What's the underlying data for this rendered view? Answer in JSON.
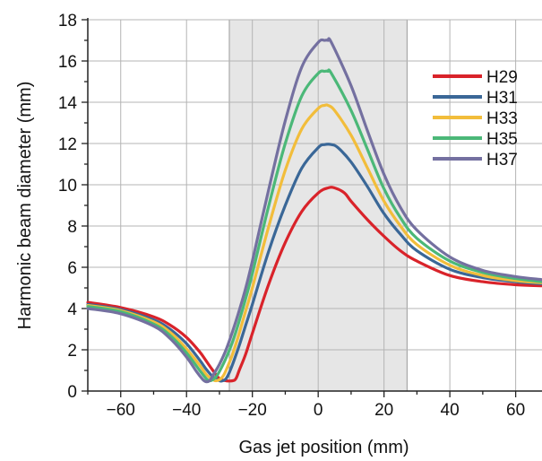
{
  "chart_data": {
    "type": "line",
    "xlabel": "Gas jet position (mm)",
    "ylabel": "Harmonic beam diameter (mm)",
    "xlim": [
      -70,
      68
    ],
    "ylim": [
      0,
      18
    ],
    "xticks": [
      -60,
      -40,
      -20,
      0,
      20,
      40,
      60
    ],
    "yticks": [
      0,
      2,
      4,
      6,
      8,
      10,
      12,
      14,
      16,
      18
    ],
    "grid": true,
    "legend_position": "top-right",
    "shaded_region": {
      "x_range": [
        -27,
        27
      ],
      "color": "#e6e6e6"
    },
    "series": [
      {
        "name": "H29",
        "color": "#d9232a",
        "x": [
          -70,
          -60,
          -50,
          -45,
          -40,
          -36,
          -34,
          -32,
          -30,
          -28,
          -26,
          -25,
          -24,
          -22,
          -20,
          -15,
          -10,
          -5,
          0,
          3,
          5,
          8,
          10,
          15,
          20,
          25,
          30,
          40,
          50,
          60,
          68
        ],
        "y": [
          4.3,
          4.05,
          3.6,
          3.2,
          2.6,
          1.9,
          1.45,
          1.0,
          0.6,
          0.5,
          0.5,
          0.6,
          1.0,
          1.8,
          2.8,
          5.2,
          7.2,
          8.7,
          9.6,
          9.85,
          9.85,
          9.6,
          9.2,
          8.3,
          7.5,
          6.8,
          6.3,
          5.6,
          5.3,
          5.15,
          5.1
        ]
      },
      {
        "name": "H31",
        "color": "#3a6797",
        "x": [
          -70,
          -60,
          -50,
          -45,
          -40,
          -36,
          -34,
          -32,
          -30,
          -29,
          -28,
          -27,
          -26,
          -24,
          -22,
          -20,
          -15,
          -10,
          -5,
          0,
          2,
          4,
          6,
          10,
          15,
          20,
          25,
          30,
          40,
          50,
          60,
          68
        ],
        "y": [
          4.2,
          3.95,
          3.45,
          3.0,
          2.3,
          1.5,
          1.05,
          0.7,
          0.5,
          0.5,
          0.6,
          0.9,
          1.3,
          2.2,
          3.2,
          4.2,
          6.8,
          9.0,
          10.8,
          11.8,
          11.95,
          11.95,
          11.8,
          11.1,
          9.9,
          8.6,
          7.6,
          6.8,
          5.9,
          5.5,
          5.3,
          5.2
        ]
      },
      {
        "name": "H33",
        "color": "#f2bd3b",
        "x": [
          -70,
          -60,
          -50,
          -45,
          -40,
          -36,
          -34,
          -32,
          -31,
          -30,
          -29,
          -28,
          -26,
          -24,
          -22,
          -20,
          -15,
          -10,
          -5,
          0,
          2,
          3,
          5,
          10,
          15,
          20,
          25,
          30,
          40,
          50,
          60,
          68
        ],
        "y": [
          4.15,
          3.9,
          3.35,
          2.85,
          2.05,
          1.25,
          0.8,
          0.55,
          0.5,
          0.55,
          0.7,
          1.0,
          1.8,
          2.8,
          3.9,
          5.0,
          8.0,
          10.7,
          12.7,
          13.7,
          13.85,
          13.85,
          13.6,
          12.4,
          10.8,
          9.2,
          8.0,
          7.1,
          6.1,
          5.6,
          5.35,
          5.25
        ]
      },
      {
        "name": "H35",
        "color": "#4bb878",
        "x": [
          -70,
          -60,
          -50,
          -45,
          -40,
          -36,
          -34,
          -33,
          -32,
          -31,
          -30,
          -28,
          -26,
          -24,
          -22,
          -20,
          -15,
          -10,
          -5,
          0,
          2,
          3,
          4,
          10,
          15,
          20,
          25,
          30,
          40,
          50,
          60,
          68
        ],
        "y": [
          4.1,
          3.85,
          3.25,
          2.7,
          1.85,
          1.0,
          0.6,
          0.5,
          0.55,
          0.7,
          0.95,
          1.6,
          2.4,
          3.4,
          4.5,
          5.7,
          9.0,
          12.0,
          14.3,
          15.4,
          15.5,
          15.5,
          15.4,
          13.6,
          11.7,
          9.8,
          8.4,
          7.4,
          6.3,
          5.75,
          5.45,
          5.3
        ]
      },
      {
        "name": "H37",
        "color": "#7470a0",
        "x": [
          -70,
          -60,
          -50,
          -45,
          -40,
          -37,
          -35,
          -34,
          -33,
          -32,
          -30,
          -28,
          -26,
          -24,
          -22,
          -20,
          -15,
          -10,
          -5,
          0,
          2,
          3,
          4,
          10,
          15,
          20,
          25,
          30,
          40,
          50,
          60,
          68
        ],
        "y": [
          4.0,
          3.75,
          3.15,
          2.55,
          1.65,
          0.95,
          0.55,
          0.45,
          0.5,
          0.75,
          1.3,
          2.0,
          2.9,
          3.9,
          5.0,
          6.3,
          9.8,
          13.1,
          15.7,
          16.9,
          17.0,
          17.0,
          16.9,
          14.8,
          12.6,
          10.5,
          8.9,
          7.8,
          6.5,
          5.85,
          5.55,
          5.4
        ]
      }
    ]
  }
}
